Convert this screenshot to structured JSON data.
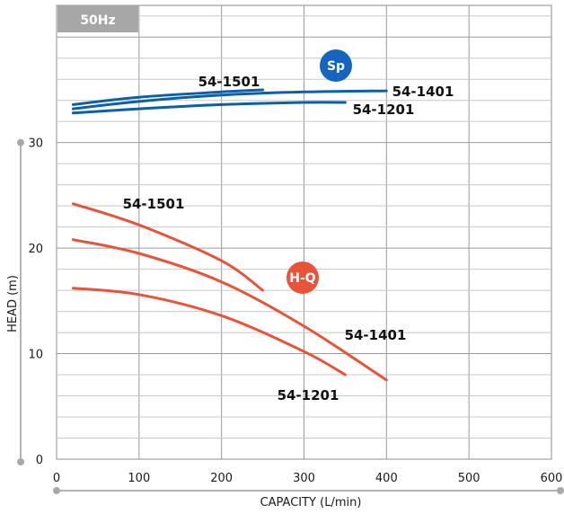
{
  "frequency_tag": "50Hz",
  "chart_data": {
    "type": "line",
    "xlabel": "CAPACITY (L/min)",
    "ylabel": "HEAD (m)",
    "xlim": [
      0,
      600
    ],
    "ylim": [
      0,
      43
    ],
    "x_ticks": [
      "0",
      "100",
      "200",
      "300",
      "400",
      "500",
      "600"
    ],
    "y_ticks": [
      "0",
      "10",
      "20",
      "30"
    ],
    "grid": true,
    "groups": [
      {
        "badge": "Sp",
        "badge_color": "#1565c0",
        "line_color": "#0d5fa8",
        "series": [
          {
            "name": "54-1501",
            "points": [
              [
                20,
                33.6
              ],
              [
                100,
                34.3
              ],
              [
                200,
                34.8
              ],
              [
                250,
                35.0
              ]
            ]
          },
          {
            "name": "54-1401",
            "points": [
              [
                20,
                33.2
              ],
              [
                100,
                33.9
              ],
              [
                200,
                34.5
              ],
              [
                300,
                34.8
              ],
              [
                400,
                34.9
              ]
            ]
          },
          {
            "name": "54-1201",
            "points": [
              [
                20,
                32.8
              ],
              [
                100,
                33.2
              ],
              [
                200,
                33.6
              ],
              [
                300,
                33.8
              ],
              [
                350,
                33.8
              ]
            ]
          }
        ]
      },
      {
        "badge": "H-Q",
        "badge_color": "#e8543a",
        "line_color": "#e8543a",
        "series": [
          {
            "name": "54-1501",
            "points": [
              [
                20,
                24.2
              ],
              [
                100,
                22.2
              ],
              [
                200,
                18.8
              ],
              [
                250,
                16.0
              ]
            ]
          },
          {
            "name": "54-1401",
            "points": [
              [
                20,
                20.8
              ],
              [
                100,
                19.5
              ],
              [
                200,
                16.8
              ],
              [
                300,
                12.6
              ],
              [
                400,
                7.5
              ]
            ]
          },
          {
            "name": "54-1201",
            "points": [
              [
                20,
                16.2
              ],
              [
                100,
                15.6
              ],
              [
                200,
                13.6
              ],
              [
                300,
                10.2
              ],
              [
                350,
                8.0
              ]
            ]
          }
        ]
      }
    ]
  }
}
